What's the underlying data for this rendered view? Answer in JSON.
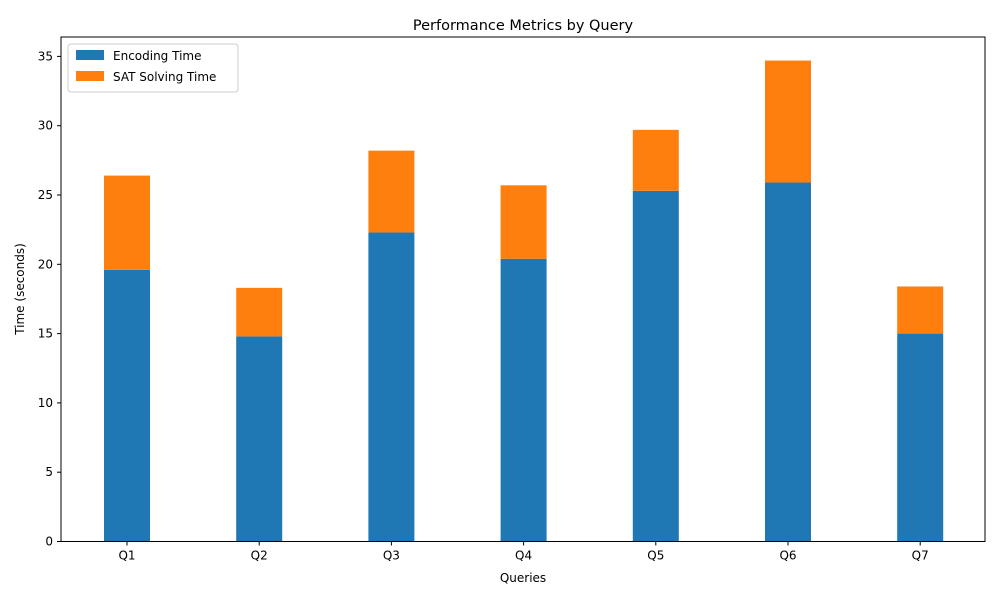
{
  "chart_data": {
    "type": "bar",
    "stacked": true,
    "title": "Performance Metrics by Query",
    "xlabel": "Queries",
    "ylabel": "Time (seconds)",
    "categories": [
      "Q1",
      "Q2",
      "Q3",
      "Q4",
      "Q5",
      "Q6",
      "Q7"
    ],
    "series": [
      {
        "name": "Encoding Time",
        "color": "#1f77b4",
        "values": [
          19.6,
          14.8,
          22.3,
          20.4,
          25.3,
          25.9,
          15.0
        ]
      },
      {
        "name": "SAT Solving Time",
        "color": "#ff7f0e",
        "values": [
          6.8,
          3.5,
          5.9,
          5.3,
          4.4,
          8.8,
          3.4
        ]
      }
    ],
    "ylim": [
      0,
      36.4
    ],
    "yticks": [
      0,
      5,
      10,
      15,
      20,
      25,
      30,
      35
    ],
    "grid": false,
    "legend_position": "top-left"
  }
}
